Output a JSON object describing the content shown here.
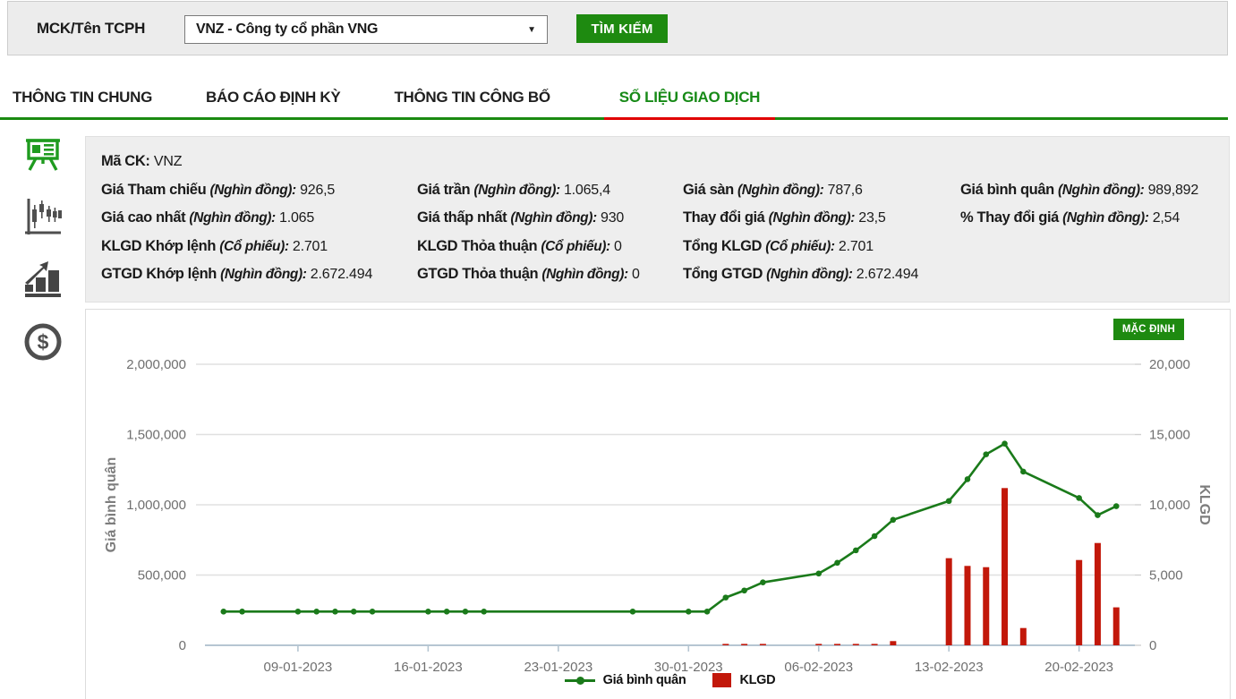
{
  "search_bar": {
    "label": "MCK/Tên TCPH",
    "dropdown_value": "VNZ - Công ty cổ phần VNG",
    "dropdown_caret_icon": "caret-down",
    "search_button": "TÌM KIẾM"
  },
  "tabs": [
    {
      "label": "THÔNG TIN CHUNG",
      "active": false
    },
    {
      "label": "BÁO CÁO ĐỊNH KỲ",
      "active": false
    },
    {
      "label": "THÔNG TIN CÔNG BỐ",
      "active": false
    },
    {
      "label": "SỐ LIỆU GIAO DỊCH",
      "active": true
    }
  ],
  "sidebar_icons": [
    {
      "name": "presentation-board-icon",
      "active": true
    },
    {
      "name": "candlestick-chart-icon",
      "active": false
    },
    {
      "name": "bar-chart-arrow-icon",
      "active": false
    },
    {
      "name": "dollar-coin-icon",
      "active": false
    }
  ],
  "info_panel": {
    "ticker_label": "Mã CK:",
    "ticker_value": "VNZ",
    "fields": [
      {
        "label": "Giá Tham chiếu",
        "unit": "(Nghìn đồng):",
        "value": "926,5"
      },
      {
        "label": "Giá trần",
        "unit": "(Nghìn đồng):",
        "value": "1.065,4"
      },
      {
        "label": "Giá sàn",
        "unit": "(Nghìn đồng):",
        "value": "787,6"
      },
      {
        "label": "Giá bình quân",
        "unit": "(Nghìn đồng):",
        "value": "989,892"
      },
      {
        "label": "Giá cao nhất",
        "unit": "(Nghìn đồng):",
        "value": "1.065"
      },
      {
        "label": "Giá thấp nhất",
        "unit": "(Nghìn đồng):",
        "value": "930"
      },
      {
        "label": "Thay đổi giá",
        "unit": "(Nghìn đồng):",
        "value": "23,5"
      },
      {
        "label": "% Thay đổi giá",
        "unit": "(Nghìn đồng):",
        "value": "2,54"
      },
      {
        "label": "KLGD Khớp lệnh",
        "unit": "(Cổ phiếu):",
        "value": "2.701"
      },
      {
        "label": "KLGD Thỏa thuận",
        "unit": "(Cổ phiếu):",
        "value": "0"
      },
      {
        "label": "Tổng KLGD",
        "unit": "(Cổ phiếu):",
        "value": "2.701"
      },
      null,
      {
        "label": "GTGD Khớp lệnh",
        "unit": "(Nghìn đồng):",
        "value": "2.672.494"
      },
      {
        "label": "GTGD Thỏa thuận",
        "unit": "(Nghìn đồng):",
        "value": "0"
      },
      {
        "label": "Tổng GTGD",
        "unit": "(Nghìn đồng):",
        "value": "2.672.494"
      },
      null
    ]
  },
  "chart_panel": {
    "default_button": "MẶC ĐỊNH"
  },
  "chart_data": {
    "type": "line+bar",
    "title": "",
    "x_range": {
      "start": "04-01-2023",
      "end": "23-02-2023"
    },
    "x_ticks": [
      "09-01-2023",
      "16-01-2023",
      "23-01-2023",
      "30-01-2023",
      "06-02-2023",
      "13-02-2023",
      "20-02-2023"
    ],
    "left_axis": {
      "title": "Giá bình quân",
      "min": 0,
      "max": 2000000,
      "tick_labels": [
        "0",
        "500,000",
        "1,000,000",
        "1,500,000",
        "2,000,000"
      ]
    },
    "right_axis": {
      "title": "KLGD",
      "min": 0,
      "max": 20000,
      "tick_labels": [
        "0",
        "5,000",
        "10,000",
        "15,000",
        "20,000"
      ]
    },
    "grid": true,
    "legend_position": "bottom-center",
    "legend": [
      {
        "label": "Giá bình quân",
        "type": "line",
        "color": "#1a7a1a"
      },
      {
        "label": "KLGD",
        "type": "bar",
        "color": "#c2180a"
      }
    ],
    "series": [
      {
        "name": "Giá bình quân",
        "type": "line",
        "axis": "left",
        "color": "#1a7a1a",
        "points": [
          {
            "date": "05-01-2023",
            "value": 240000
          },
          {
            "date": "06-01-2023",
            "value": 240000
          },
          {
            "date": "09-01-2023",
            "value": 240000
          },
          {
            "date": "10-01-2023",
            "value": 240000
          },
          {
            "date": "11-01-2023",
            "value": 240000
          },
          {
            "date": "12-01-2023",
            "value": 240000
          },
          {
            "date": "13-01-2023",
            "value": 240000
          },
          {
            "date": "16-01-2023",
            "value": 240000
          },
          {
            "date": "17-01-2023",
            "value": 240000
          },
          {
            "date": "18-01-2023",
            "value": 240000
          },
          {
            "date": "19-01-2023",
            "value": 240000
          },
          {
            "date": "27-01-2023",
            "value": 240000
          },
          {
            "date": "30-01-2023",
            "value": 240000
          },
          {
            "date": "31-01-2023",
            "value": 240000
          },
          {
            "date": "01-02-2023",
            "value": 340000
          },
          {
            "date": "02-02-2023",
            "value": 390000
          },
          {
            "date": "03-02-2023",
            "value": 448000
          },
          {
            "date": "06-02-2023",
            "value": 511000
          },
          {
            "date": "07-02-2023",
            "value": 587000
          },
          {
            "date": "08-02-2023",
            "value": 676000
          },
          {
            "date": "09-02-2023",
            "value": 777000
          },
          {
            "date": "10-02-2023",
            "value": 893000
          },
          {
            "date": "13-02-2023",
            "value": 1027000
          },
          {
            "date": "14-02-2023",
            "value": 1182000
          },
          {
            "date": "15-02-2023",
            "value": 1359000
          },
          {
            "date": "16-02-2023",
            "value": 1435000
          },
          {
            "date": "17-02-2023",
            "value": 1236000
          },
          {
            "date": "20-02-2023",
            "value": 1048000
          },
          {
            "date": "21-02-2023",
            "value": 926500
          },
          {
            "date": "22-02-2023",
            "value": 989892
          }
        ]
      },
      {
        "name": "KLGD",
        "type": "bar",
        "axis": "right",
        "color": "#c2180a",
        "points": [
          {
            "date": "01-02-2023",
            "value": 100
          },
          {
            "date": "02-02-2023",
            "value": 100
          },
          {
            "date": "03-02-2023",
            "value": 100
          },
          {
            "date": "06-02-2023",
            "value": 100
          },
          {
            "date": "07-02-2023",
            "value": 100
          },
          {
            "date": "08-02-2023",
            "value": 100
          },
          {
            "date": "09-02-2023",
            "value": 100
          },
          {
            "date": "10-02-2023",
            "value": 300
          },
          {
            "date": "13-02-2023",
            "value": 6200
          },
          {
            "date": "14-02-2023",
            "value": 5650
          },
          {
            "date": "15-02-2023",
            "value": 5560
          },
          {
            "date": "16-02-2023",
            "value": 11190
          },
          {
            "date": "17-02-2023",
            "value": 1230
          },
          {
            "date": "20-02-2023",
            "value": 6070
          },
          {
            "date": "21-02-2023",
            "value": 7280
          },
          {
            "date": "22-02-2023",
            "value": 2701
          }
        ]
      }
    ],
    "style": {
      "grid_color": "#e0e0e0",
      "axis_line_color": "#b6c6d2",
      "tick_label_color": "#6f6f6f",
      "axis_title_color": "#7d7d7d"
    }
  },
  "accent_colors": {
    "green_button": "#1e8a10",
    "tab_green": "#178a17",
    "tab_red_underline": "#e00000"
  }
}
